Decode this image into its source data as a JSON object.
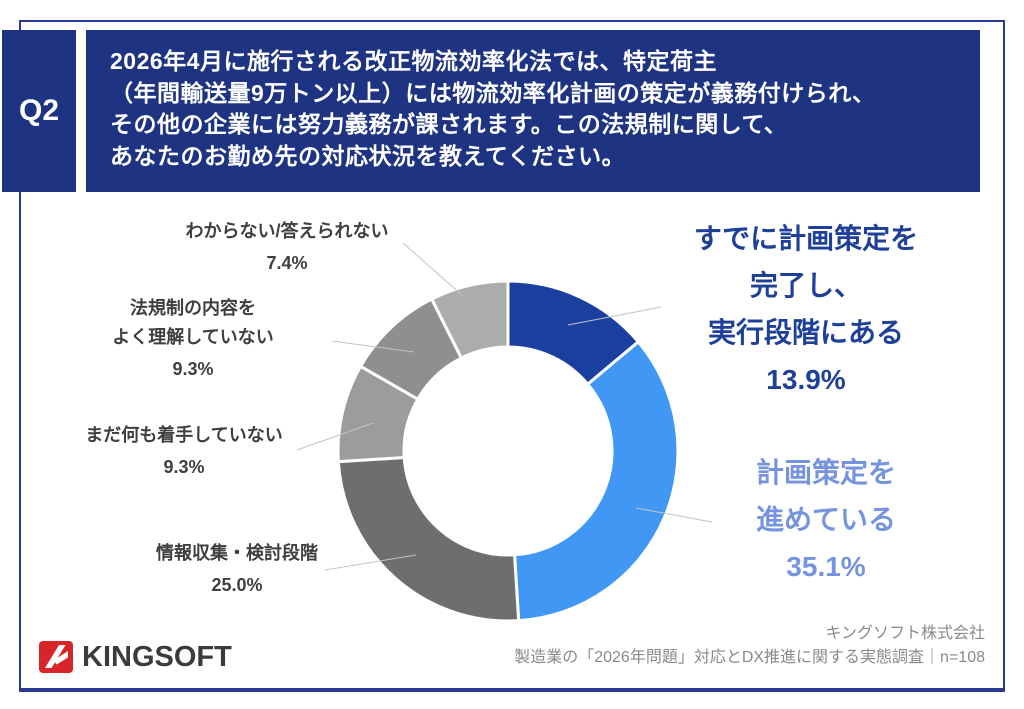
{
  "question": {
    "number": "Q2",
    "lines": [
      "2026年4月に施行される改正物流効率化法では、特定荷主",
      "（年間輸送量9万トン以上）には物流効率化計画の策定が義務付けられ、",
      "その他の企業には努力義務が課されます。この法規制に関して、",
      "あなたのお勤め先の対応状況を教えてください。"
    ]
  },
  "chart_data": {
    "type": "pie",
    "subtype": "donut",
    "title": "",
    "legend": "none",
    "start_angle_deg": 0,
    "direction": "clockwise",
    "inner_radius_ratio": 0.61,
    "total": 100.0,
    "segments": [
      {
        "label": "すでに計画策定を完了し、実行段階にある",
        "value": 13.9,
        "pct_label": "13.9%",
        "color": "#1A3F9E"
      },
      {
        "label": "計画策定を進めている",
        "value": 35.1,
        "pct_label": "35.1%",
        "color": "#4197F4"
      },
      {
        "label": "情報収集・検討段階",
        "value": 25.0,
        "pct_label": "25.0%",
        "color": "#6E6E6E"
      },
      {
        "label": "まだ何も着手していない",
        "value": 9.3,
        "pct_label": "9.3%",
        "color": "#9C9C9C"
      },
      {
        "label": "法規制の内容をよく理解していない",
        "value": 9.3,
        "pct_label": "9.3%",
        "color": "#8F8F8F"
      },
      {
        "label": "わからない/答えられない",
        "value": 7.4,
        "pct_label": "7.4%",
        "color": "#ACACAC"
      }
    ]
  },
  "callouts": {
    "completed": {
      "lines": [
        "すでに計画策定を",
        "完了し、",
        "実行段階にある"
      ],
      "pct": "13.9%",
      "color": "#1E4099"
    },
    "in_progress": {
      "lines": [
        "計画策定を",
        "進めている"
      ],
      "pct": "35.1%",
      "color": "#7593DE"
    },
    "gathering": {
      "lines": [
        "情報収集・検討段階"
      ],
      "pct": "25.0%"
    },
    "not_started": {
      "lines": [
        "まだ何も着手していない"
      ],
      "pct": "9.3%"
    },
    "not_understood": {
      "lines": [
        "法規制の内容を",
        "よく理解していない"
      ],
      "pct": "9.3%"
    },
    "unknown": {
      "lines": [
        "わからない/答えられない"
      ],
      "pct": "7.4%"
    }
  },
  "footer": {
    "logo_text": "KINGSOFT",
    "company": "キングソフト株式会社",
    "source": "製造業の「2026年問題」対応とDX推進に関する実態調査｜n=108"
  },
  "colors": {
    "header_bg": "#1E3482",
    "border": "#2B3A94",
    "left_label_text": "#3F3F3F",
    "leader_line": "#C4C4C4",
    "logo_red": "#D7252A"
  }
}
